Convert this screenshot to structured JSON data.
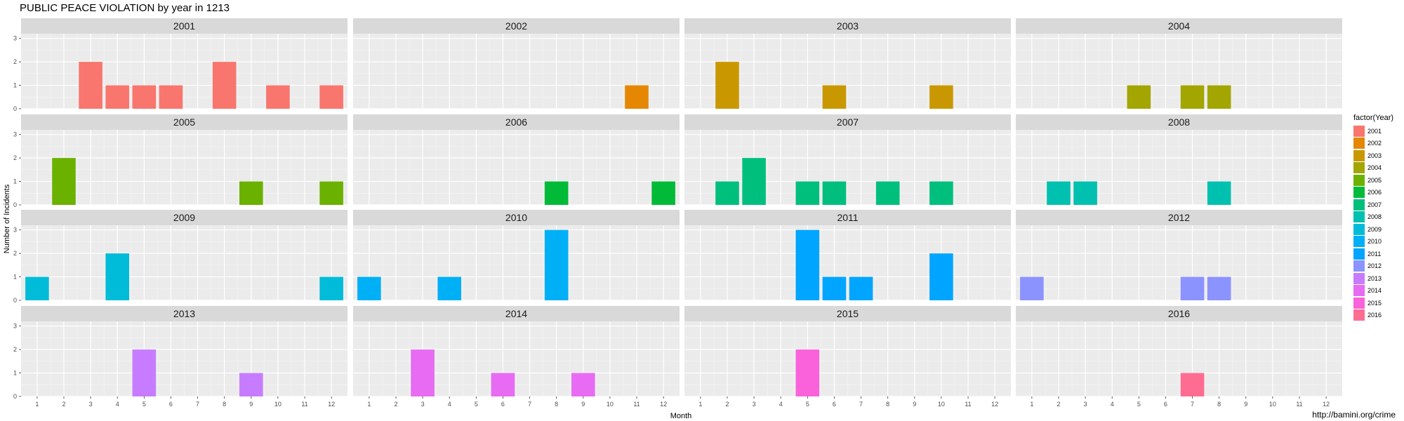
{
  "title": "PUBLIC PEACE VIOLATION by year in 1213",
  "caption": "http://bamini.org/crime",
  "chart_data": {
    "type": "bar",
    "title": "PUBLIC PEACE VIOLATION by year in 1213",
    "xlabel": "Month",
    "ylabel": "Number of Incidents",
    "x_ticks": [
      "1",
      "2",
      "3",
      "4",
      "5",
      "6",
      "7",
      "8",
      "9",
      "10",
      "11",
      "12"
    ],
    "y_ticks": [
      "0",
      "1",
      "2",
      "3"
    ],
    "ylim": [
      0,
      3.2
    ],
    "xlim": [
      0.4,
      12.6
    ],
    "grid": true,
    "legend_placement": "right",
    "legend_title": "factor(Year)",
    "facets": [
      {
        "label": "2001",
        "color": "#F8766D",
        "bars": [
          {
            "x": 3,
            "y": 2
          },
          {
            "x": 4,
            "y": 1
          },
          {
            "x": 5,
            "y": 1
          },
          {
            "x": 6,
            "y": 1
          },
          {
            "x": 8,
            "y": 2
          },
          {
            "x": 10,
            "y": 1
          },
          {
            "x": 12,
            "y": 1
          }
        ]
      },
      {
        "label": "2002",
        "color": "#E58700",
        "bars": [
          {
            "x": 11,
            "y": 1
          }
        ]
      },
      {
        "label": "2003",
        "color": "#C99800",
        "bars": [
          {
            "x": 2,
            "y": 2
          },
          {
            "x": 6,
            "y": 1
          },
          {
            "x": 10,
            "y": 1
          }
        ]
      },
      {
        "label": "2004",
        "color": "#A3A500",
        "bars": [
          {
            "x": 5,
            "y": 1
          },
          {
            "x": 7,
            "y": 1
          },
          {
            "x": 8,
            "y": 1
          }
        ]
      },
      {
        "label": "2005",
        "color": "#6BB100",
        "bars": [
          {
            "x": 2,
            "y": 2
          },
          {
            "x": 9,
            "y": 1
          },
          {
            "x": 12,
            "y": 1
          }
        ]
      },
      {
        "label": "2006",
        "color": "#00BA38",
        "bars": [
          {
            "x": 8,
            "y": 1
          },
          {
            "x": 12,
            "y": 1
          }
        ]
      },
      {
        "label": "2007",
        "color": "#00BF7D",
        "bars": [
          {
            "x": 2,
            "y": 1
          },
          {
            "x": 3,
            "y": 2
          },
          {
            "x": 5,
            "y": 1
          },
          {
            "x": 6,
            "y": 1
          },
          {
            "x": 8,
            "y": 1
          },
          {
            "x": 10,
            "y": 1
          }
        ]
      },
      {
        "label": "2008",
        "color": "#00C0AF",
        "bars": [
          {
            "x": 2,
            "y": 1
          },
          {
            "x": 3,
            "y": 1
          },
          {
            "x": 8,
            "y": 1
          }
        ]
      },
      {
        "label": "2009",
        "color": "#00BCD8",
        "bars": [
          {
            "x": 1,
            "y": 1
          },
          {
            "x": 4,
            "y": 2
          },
          {
            "x": 12,
            "y": 1
          }
        ]
      },
      {
        "label": "2010",
        "color": "#00B0F6",
        "bars": [
          {
            "x": 1,
            "y": 1
          },
          {
            "x": 4,
            "y": 1
          },
          {
            "x": 8,
            "y": 3
          }
        ]
      },
      {
        "label": "2011",
        "color": "#00A5FF",
        "bars": [
          {
            "x": 5,
            "y": 3
          },
          {
            "x": 6,
            "y": 1
          },
          {
            "x": 7,
            "y": 1
          },
          {
            "x": 10,
            "y": 2
          }
        ]
      },
      {
        "label": "2012",
        "color": "#8B93FF",
        "bars": [
          {
            "x": 1,
            "y": 1
          },
          {
            "x": 7,
            "y": 1
          },
          {
            "x": 8,
            "y": 1
          }
        ]
      },
      {
        "label": "2013",
        "color": "#C77CFF",
        "bars": [
          {
            "x": 5,
            "y": 2
          },
          {
            "x": 9,
            "y": 1
          }
        ]
      },
      {
        "label": "2014",
        "color": "#E76BF3",
        "bars": [
          {
            "x": 3,
            "y": 2
          },
          {
            "x": 6,
            "y": 1
          },
          {
            "x": 9,
            "y": 1
          }
        ]
      },
      {
        "label": "2015",
        "color": "#FA62DB",
        "bars": [
          {
            "x": 5,
            "y": 2
          }
        ]
      },
      {
        "label": "2016",
        "color": "#FF6C91",
        "bars": [
          {
            "x": 7,
            "y": 1
          }
        ]
      }
    ]
  }
}
